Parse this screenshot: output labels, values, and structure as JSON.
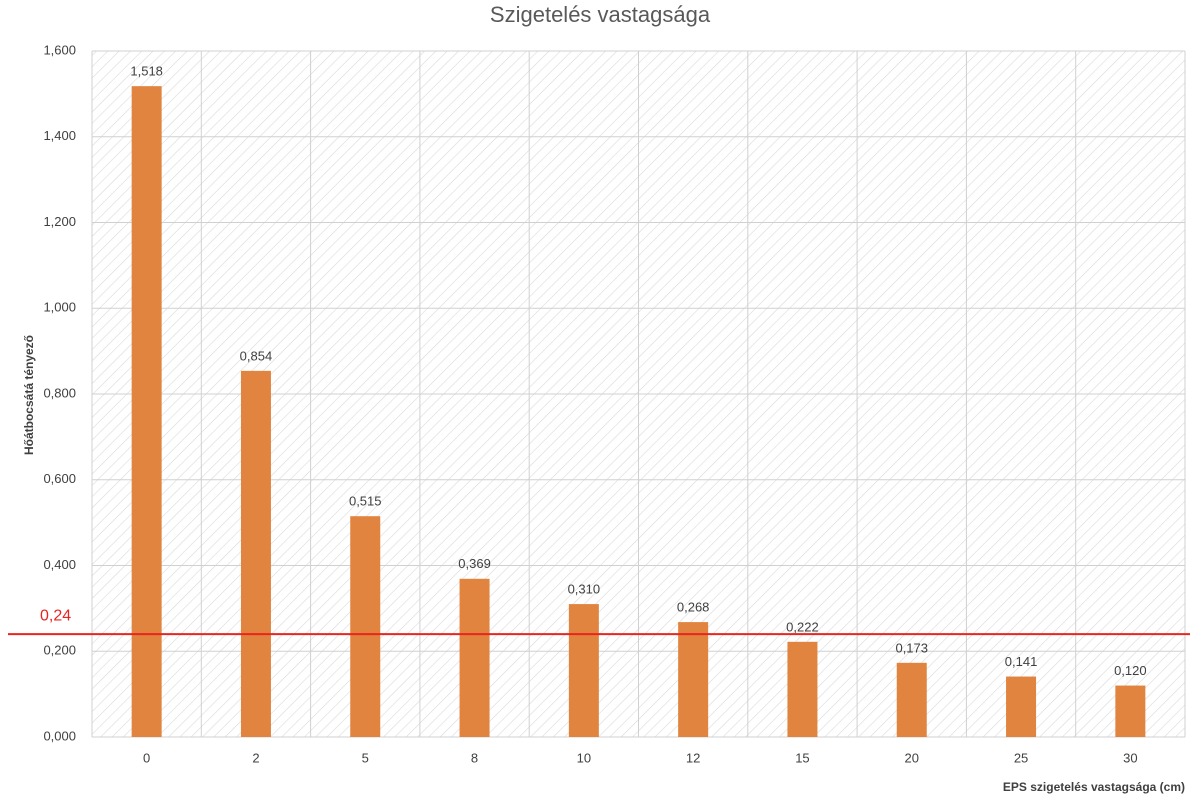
{
  "chart_data": {
    "type": "bar",
    "title": "Szigetelés vastagsága",
    "x_label": "EPS szigetelés vastagsága (cm)",
    "y_label": "Hőátbocsátá tényező",
    "categories": [
      "0",
      "2",
      "5",
      "8",
      "10",
      "12",
      "15",
      "20",
      "25",
      "30"
    ],
    "values": [
      1.518,
      0.854,
      0.515,
      0.369,
      0.31,
      0.268,
      0.222,
      0.173,
      0.141,
      0.12
    ],
    "value_labels": [
      "1,518",
      "0,854",
      "0,515",
      "0,369",
      "0,310",
      "0,268",
      "0,222",
      "0,173",
      "0,141",
      "0,120"
    ],
    "color": "#e0843f",
    "ylim": [
      0,
      1.6
    ],
    "yticks": [
      {
        "value": 0,
        "label": "0,000"
      },
      {
        "value": 0.2,
        "label": "0,200"
      },
      {
        "value": 0.4,
        "label": "0,400"
      },
      {
        "value": 0.6,
        "label": "0,600"
      },
      {
        "value": 0.8,
        "label": "0,800"
      },
      {
        "value": 1.0,
        "label": "1,000"
      },
      {
        "value": 1.2,
        "label": "1,200"
      },
      {
        "value": 1.4,
        "label": "1,400"
      },
      {
        "value": 1.6,
        "label": "1,600"
      }
    ],
    "grid": true,
    "reference_line": {
      "value": 0.24,
      "label": "0,24",
      "color": "#e8251f"
    }
  }
}
